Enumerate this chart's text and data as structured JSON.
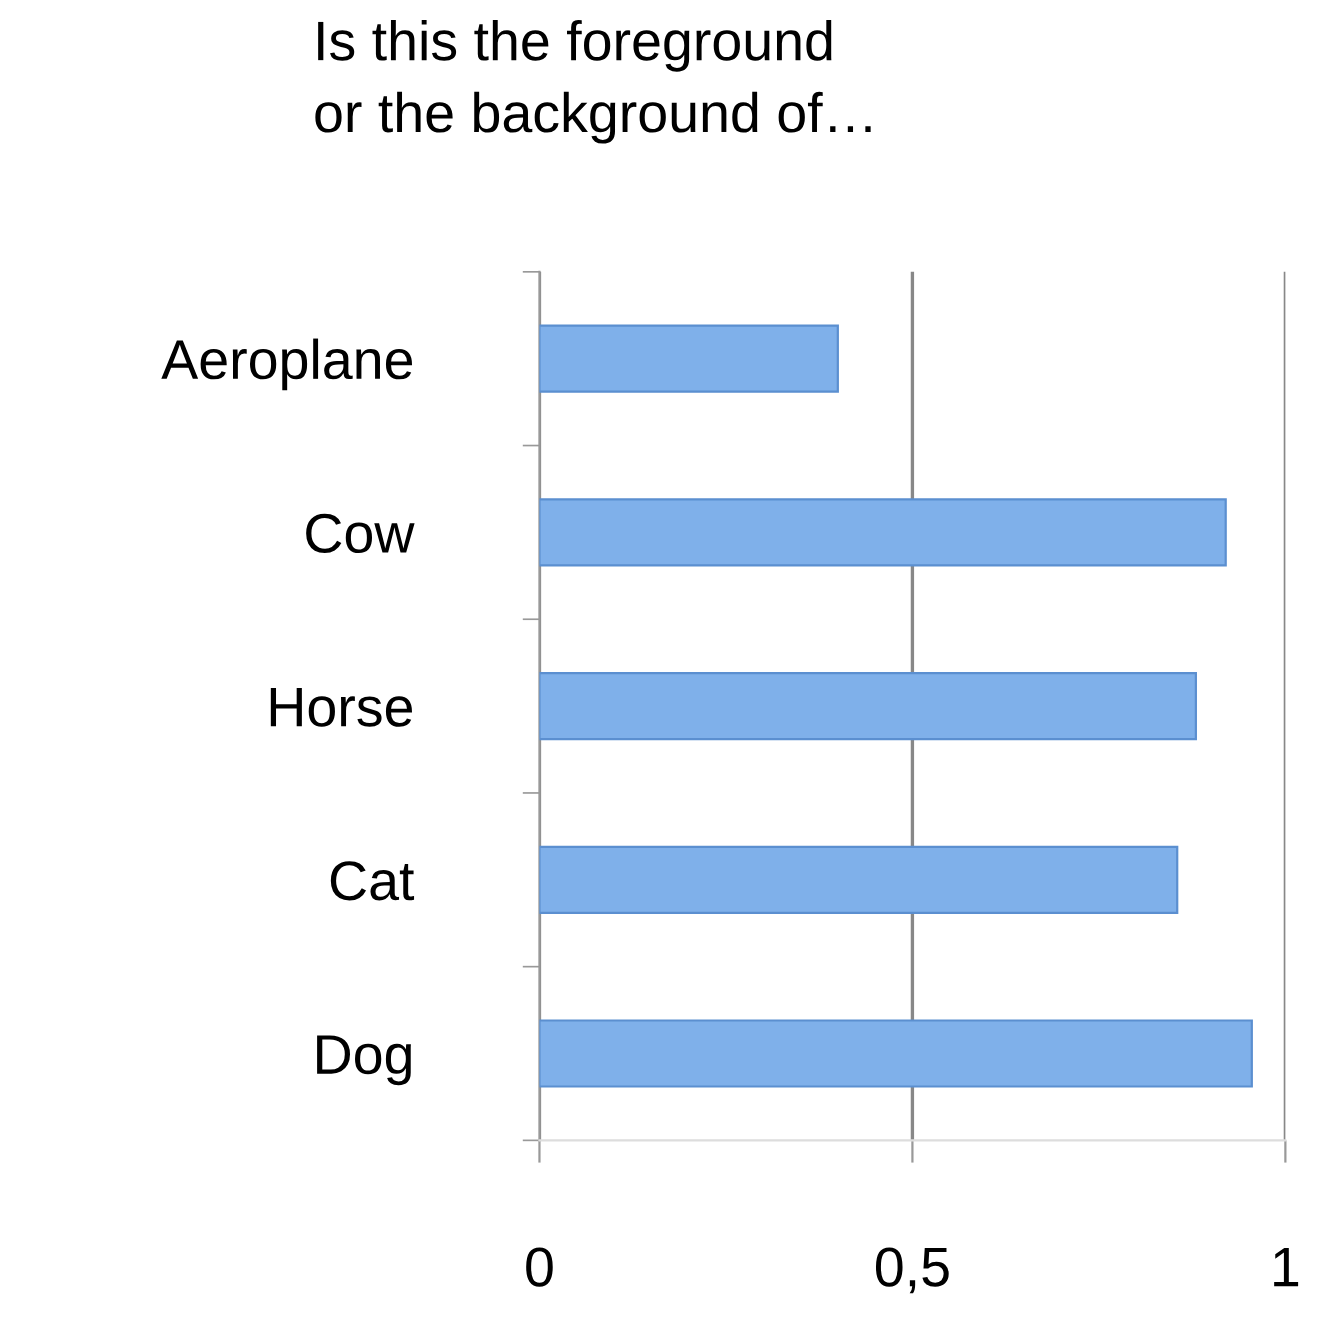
{
  "chart_data": {
    "type": "bar",
    "orientation": "horizontal",
    "title": "Is this the foreground\nor the background of…",
    "categories": [
      "Aeroplane",
      "Cow",
      "Horse",
      "Cat",
      "Dog"
    ],
    "values": [
      0.4,
      0.92,
      0.88,
      0.855,
      0.955
    ],
    "color": "#7fb0ea",
    "xlim": [
      0,
      1
    ],
    "xticks": [
      0,
      {
        "value": 0.5,
        "label": "0,5"
      },
      1
    ],
    "grid": "x"
  }
}
